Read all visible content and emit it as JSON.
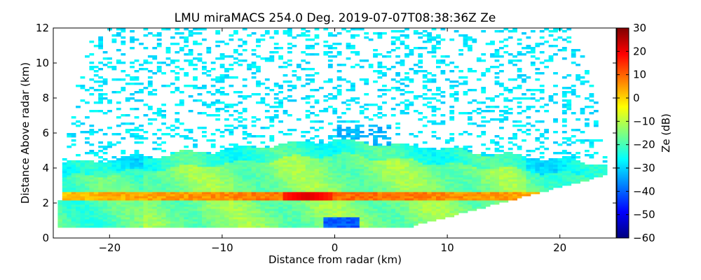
{
  "chart_data": {
    "type": "heatmap",
    "title": "LMU miraMACS 254.0 Deg. 2019-07-07T08:38:36Z  Ze",
    "xlabel": "Distance from radar (km)",
    "ylabel": "Distance Above radar  (km)",
    "xlim": [
      -25,
      25
    ],
    "ylim": [
      0,
      12
    ],
    "x_ticks": [
      -20,
      -10,
      0,
      10,
      20
    ],
    "x_tick_labels": [
      "−20",
      "−10",
      "0",
      "10",
      "20"
    ],
    "y_ticks": [
      0,
      2,
      4,
      6,
      8,
      10,
      12
    ],
    "y_tick_labels": [
      "0",
      "2",
      "4",
      "6",
      "8",
      "10",
      "12"
    ],
    "colorbar": {
      "label": "Ze (dB)",
      "range": [
        -60,
        30
      ],
      "ticks": [
        30,
        20,
        10,
        0,
        -10,
        -20,
        -30,
        -40,
        -50,
        -60
      ],
      "tick_labels": [
        "30",
        "20",
        "10",
        "0",
        "−10",
        "−20",
        "−30",
        "−40",
        "−50",
        "−60"
      ],
      "colormap": "jet"
    },
    "scan": {
      "type": "RHI",
      "azimuth_deg": 254.0,
      "timestamp": "2019-07-07T08:38:36Z",
      "max_range_km": 24.5
    },
    "layers": [
      {
        "name": "noise background",
        "ze_db": -28
      },
      {
        "name": "main cloud layer",
        "base_km": 0.6,
        "top_km": 5.6,
        "ze_db": -15
      },
      {
        "name": "melting layer bright band",
        "height_km": 2.45,
        "thickness_km": 0.25,
        "ze_db": 10
      },
      {
        "name": "bright band core",
        "x_km": -2.5,
        "height_km": 2.45,
        "ze_db": 22
      },
      {
        "name": "cloud top turret",
        "x_km": 2.5,
        "top_km": 6.5,
        "ze_db": -30
      }
    ]
  }
}
